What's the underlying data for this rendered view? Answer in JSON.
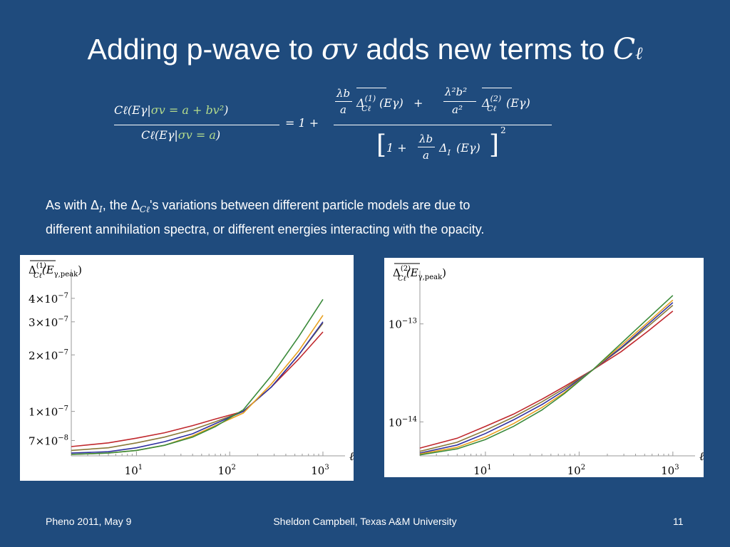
{
  "title": {
    "prefix": "Adding p-wave to",
    "sigma_v": "σv",
    "middle": "adds new terms to",
    "C": "C",
    "ell": "ℓ"
  },
  "equation": {
    "lhs_num": "Cℓ(Eγ|σv = a + bv²)",
    "lhs_num_open": "Cℓ(Eγ|",
    "lhs_num_green": "σv = a + bv²",
    "lhs_num_close": ")",
    "lhs_den_open": "Cℓ(Eγ|",
    "lhs_den_green": "σv = a",
    "lhs_den_close": ")",
    "equals_one_plus": "= 1 +",
    "coef1_num": "λb",
    "coef1_den": "a",
    "delta1": "Δ",
    "delta1_sup": "(1)",
    "delta1_sub": "Cℓ",
    "arg1": "(Eγ)",
    "plus": "+",
    "coef2_num": "λ²b²",
    "coef2_den": "a²",
    "delta2": "Δ",
    "delta2_sup": "(2)",
    "delta2_sub": "Cℓ",
    "arg2": "(Eγ)",
    "den_open": "[",
    "den_one_plus": "1 +",
    "den_coef_num": "λb",
    "den_coef_den": "a",
    "den_delta": "Δ",
    "den_delta_sub": "I",
    "den_arg": "(Eγ)",
    "den_close": "]",
    "den_power": "2"
  },
  "body": {
    "part1": "As with Δ",
    "sub1": "I",
    "part2": ", the Δ",
    "sub2": "Cℓ",
    "part3": "'s variations between different particle models are due to",
    "line2": "different annihilation spectra, or different energies interacting with the opacity."
  },
  "colors": {
    "background": "#1f4b7d",
    "red": "#c0282d",
    "orange": "#e8a020",
    "green": "#3a8a3a",
    "blue": "#3030a0",
    "olive": "#8a7a3a"
  },
  "chart_data": [
    {
      "type": "line",
      "title": "",
      "ylabel": "Δ̄(1)Cℓ(Eγ,peak)",
      "ylabel_parts": {
        "delta": "Δ",
        "sup": "(1)",
        "sub": "Cℓ",
        "arg": "(E",
        "arg_sub": "γ,peak",
        "close": ")"
      },
      "xlabel": "ℓ",
      "x_scale": "log",
      "y_scale": "log",
      "xlim": [
        2,
        1500
      ],
      "ylim": [
        5.8e-08,
        4.8e-07
      ],
      "x_ticks": [
        {
          "value": 10,
          "label_base": "10",
          "label_exp": "1"
        },
        {
          "value": 100,
          "label_base": "10",
          "label_exp": "2"
        },
        {
          "value": 1000,
          "label_base": "10",
          "label_exp": "3"
        }
      ],
      "y_ticks": [
        {
          "value": 4e-07,
          "label": "4×10",
          "exp": "−7"
        },
        {
          "value": 3e-07,
          "label": "3×10",
          "exp": "−7"
        },
        {
          "value": 2e-07,
          "label": "2×10",
          "exp": "−7"
        },
        {
          "value": 1e-07,
          "label": "1×10",
          "exp": "−7"
        },
        {
          "value": 7e-08,
          "label": "7×10",
          "exp": "−8"
        }
      ],
      "x": [
        2,
        5,
        10,
        20,
        40,
        70,
        140,
        280,
        550,
        1000
      ],
      "series": [
        {
          "color": "red",
          "values": [
            6.5e-08,
            6.8e-08,
            7.2e-08,
            7.7e-08,
            8.4e-08,
            9.1e-08,
            1e-07,
            1.35e-07,
            1.9e-07,
            2.65e-07
          ]
        },
        {
          "color": "olive",
          "values": [
            6.2e-08,
            6.4e-08,
            6.8e-08,
            7.3e-08,
            8e-08,
            8.8e-08,
            1e-07,
            1.35e-07,
            2e-07,
            2.95e-07
          ]
        },
        {
          "color": "blue",
          "values": [
            6e-08,
            6.1e-08,
            6.4e-08,
            6.9e-08,
            7.6e-08,
            8.6e-08,
            1e-07,
            1.35e-07,
            2e-07,
            3e-07
          ]
        },
        {
          "color": "orange",
          "values": [
            5.9e-08,
            6e-08,
            6.2e-08,
            6.6e-08,
            7.4e-08,
            8.4e-08,
            9.8e-08,
            1.4e-07,
            2.1e-07,
            3.25e-07
          ]
        },
        {
          "color": "green",
          "values": [
            5.9e-08,
            6e-08,
            6.2e-08,
            6.6e-08,
            7.3e-08,
            8.3e-08,
            1.02e-07,
            1.55e-07,
            2.5e-07,
            3.95e-07
          ]
        }
      ]
    },
    {
      "type": "line",
      "title": "",
      "ylabel": "Δ̄(2)Cℓ(Eγ,peak)",
      "ylabel_parts": {
        "delta": "Δ",
        "sup": "(2)",
        "sub": "Cℓ",
        "arg": "(E",
        "arg_sub": "γ,peak",
        "close": ")"
      },
      "xlabel": "ℓ",
      "x_scale": "log",
      "y_scale": "log",
      "xlim": [
        2,
        1500
      ],
      "ylim": [
        4.5e-15,
        2.5e-13
      ],
      "x_ticks": [
        {
          "value": 10,
          "label_base": "10",
          "label_exp": "1"
        },
        {
          "value": 100,
          "label_base": "10",
          "label_exp": "2"
        },
        {
          "value": 1000,
          "label_base": "10",
          "label_exp": "3"
        }
      ],
      "y_ticks": [
        {
          "value": 1e-13,
          "label": "10",
          "exp": "−13"
        },
        {
          "value": 1e-14,
          "label": "10",
          "exp": "−14"
        }
      ],
      "x": [
        2,
        5,
        10,
        20,
        40,
        70,
        140,
        280,
        550,
        1000
      ],
      "series": [
        {
          "color": "red",
          "values": [
            5.4e-15,
            6.8e-15,
            9e-15,
            1.2e-14,
            1.7e-14,
            2.3e-14,
            3.4e-14,
            5.2e-14,
            8.5e-14,
            1.35e-13
          ]
        },
        {
          "color": "olive",
          "values": [
            5e-15,
            6.2e-15,
            8.2e-15,
            1.12e-14,
            1.6e-14,
            2.2e-14,
            3.4e-14,
            5.6e-14,
            9.5e-14,
            1.55e-13
          ]
        },
        {
          "color": "blue",
          "values": [
            4.8e-15,
            5.8e-15,
            7.6e-15,
            1.05e-14,
            1.5e-14,
            2.1e-14,
            3.4e-14,
            5.7e-14,
            1e-13,
            1.65e-13
          ]
        },
        {
          "color": "orange",
          "values": [
            4.7e-15,
            5.5e-15,
            7e-15,
            9.6e-15,
            1.4e-14,
            2e-14,
            3.4e-14,
            6e-14,
            1.05e-13,
            1.75e-13
          ]
        },
        {
          "color": "green",
          "values": [
            4.6e-15,
            5.3e-15,
            6.6e-15,
            9e-15,
            1.32e-14,
            1.95e-14,
            3.4e-14,
            6.3e-14,
            1.15e-13,
            1.95e-13
          ]
        }
      ]
    }
  ],
  "footer": {
    "left": "Pheno 2011, May 9",
    "center": "Sheldon Campbell, Texas A&M University",
    "right": "11"
  }
}
